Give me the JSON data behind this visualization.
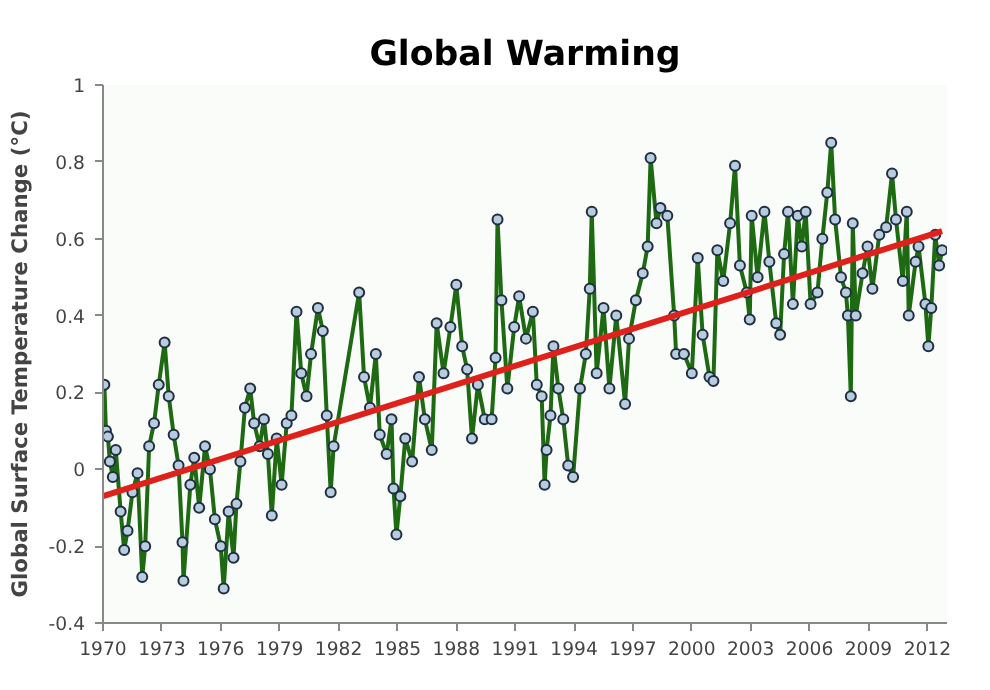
{
  "chart_data": {
    "type": "line",
    "title": "Global Warming",
    "ylabel": "Global Surface Temperature Change (°C)",
    "xlim": [
      1970,
      2013
    ],
    "xticks": [
      1970,
      1973,
      1976,
      1979,
      1982,
      1985,
      1988,
      1991,
      1994,
      1997,
      2000,
      2003,
      2006,
      2009,
      2012
    ],
    "ylim": [
      -0.4,
      1
    ],
    "yticks": [
      -0.4,
      -0.2,
      0,
      0.2,
      0.4,
      0.6,
      0.8,
      1
    ],
    "grid": false,
    "line_style": "solid",
    "series": [
      {
        "color": "#1d6a12",
        "marker": "circle",
        "x": [
          1970.07,
          1970.15,
          1970.25,
          1970.35,
          1970.5,
          1970.65,
          1970.9,
          1971.08,
          1971.25,
          1971.5,
          1971.76,
          1972.0,
          1972.15,
          1972.35,
          1972.6,
          1972.84,
          1973.14,
          1973.35,
          1973.6,
          1973.85,
          1974.05,
          1974.1,
          1974.45,
          1974.65,
          1974.9,
          1975.2,
          1975.45,
          1975.7,
          1976.0,
          1976.15,
          1976.4,
          1976.65,
          1976.8,
          1977.0,
          1977.23,
          1977.5,
          1977.7,
          1977.98,
          1978.2,
          1978.4,
          1978.6,
          1978.85,
          1979.1,
          1979.36,
          1979.6,
          1979.86,
          1980.1,
          1980.37,
          1980.6,
          1980.95,
          1981.2,
          1981.4,
          1981.6,
          1981.75,
          1983.05,
          1983.3,
          1983.6,
          1983.9,
          1984.1,
          1984.45,
          1984.7,
          1984.8,
          1984.95,
          1985.15,
          1985.4,
          1985.75,
          1986.1,
          1986.4,
          1986.75,
          1987.0,
          1987.35,
          1987.7,
          1988.0,
          1988.3,
          1988.55,
          1988.8,
          1989.1,
          1989.45,
          1989.8,
          1990.0,
          1990.1,
          1990.3,
          1990.6,
          1990.95,
          1991.2,
          1991.55,
          1991.9,
          1992.1,
          1992.35,
          1992.5,
          1992.6,
          1992.8,
          1992.95,
          1993.2,
          1993.45,
          1993.7,
          1993.95,
          1994.3,
          1994.6,
          1994.8,
          1994.9,
          1995.15,
          1995.5,
          1995.8,
          1996.15,
          1996.6,
          1996.8,
          1997.15,
          1997.5,
          1997.75,
          1997.9,
          1998.2,
          1998.4,
          1998.75,
          1999.1,
          1999.2,
          1999.6,
          2000.0,
          2000.3,
          2000.55,
          2000.9,
          2001.1,
          2001.3,
          2001.6,
          2001.95,
          2002.2,
          2002.45,
          2002.8,
          2002.95,
          2003.05,
          2003.35,
          2003.7,
          2003.95,
          2004.3,
          2004.5,
          2004.7,
          2004.9,
          2005.15,
          2005.4,
          2005.6,
          2005.8,
          2006.05,
          2006.4,
          2006.65,
          2006.9,
          2007.1,
          2007.3,
          2007.6,
          2007.85,
          2007.95,
          2008.1,
          2008.2,
          2008.35,
          2008.7,
          2008.95,
          2009.2,
          2009.55,
          2009.9,
          2010.2,
          2010.4,
          2010.75,
          2010.95,
          2011.05,
          2011.4,
          2011.55,
          2011.9,
          2012.05,
          2012.2,
          2012.4,
          2012.6,
          2012.75
        ],
        "values": [
          0.22,
          0.1,
          0.085,
          0.02,
          -0.02,
          0.05,
          -0.11,
          -0.21,
          -0.16,
          -0.06,
          -0.01,
          -0.28,
          -0.2,
          0.06,
          0.12,
          0.22,
          0.33,
          0.19,
          0.09,
          0.01,
          -0.19,
          -0.29,
          -0.04,
          0.03,
          -0.1,
          0.06,
          0.0,
          -0.13,
          -0.2,
          -0.31,
          -0.11,
          -0.23,
          -0.09,
          0.02,
          0.16,
          0.21,
          0.12,
          0.06,
          0.13,
          0.04,
          -0.12,
          0.08,
          -0.04,
          0.12,
          0.14,
          0.41,
          0.25,
          0.19,
          0.3,
          0.42,
          0.36,
          0.14,
          -0.06,
          0.06,
          0.46,
          0.24,
          0.16,
          0.3,
          0.09,
          0.04,
          0.13,
          -0.05,
          -0.17,
          -0.07,
          0.08,
          0.02,
          0.24,
          0.13,
          0.05,
          0.38,
          0.25,
          0.37,
          0.48,
          0.32,
          0.26,
          0.08,
          0.22,
          0.13,
          0.13,
          0.29,
          0.65,
          0.44,
          0.21,
          0.37,
          0.45,
          0.34,
          0.41,
          0.22,
          0.19,
          -0.04,
          0.05,
          0.14,
          0.32,
          0.21,
          0.13,
          0.01,
          -0.02,
          0.21,
          0.3,
          0.47,
          0.67,
          0.25,
          0.42,
          0.21,
          0.4,
          0.17,
          0.34,
          0.44,
          0.51,
          0.58,
          0.81,
          0.64,
          0.68,
          0.66,
          0.4,
          0.3,
          0.3,
          0.25,
          0.55,
          0.35,
          0.24,
          0.23,
          0.57,
          0.49,
          0.64,
          0.79,
          0.53,
          0.46,
          0.39,
          0.66,
          0.5,
          0.67,
          0.54,
          0.38,
          0.35,
          0.56,
          0.67,
          0.43,
          0.66,
          0.58,
          0.67,
          0.43,
          0.46,
          0.6,
          0.72,
          0.85,
          0.65,
          0.5,
          0.46,
          0.4,
          0.19,
          0.64,
          0.4,
          0.51,
          0.58,
          0.47,
          0.61,
          0.63,
          0.77,
          0.65,
          0.49,
          0.67,
          0.4,
          0.54,
          0.58,
          0.43,
          0.32,
          0.42,
          0.61,
          0.53,
          0.57
        ]
      },
      {
        "color": "#e0201b",
        "marker": "none",
        "x": [
          1970,
          2012.75
        ],
        "values": [
          -0.07,
          0.62
        ]
      }
    ]
  }
}
